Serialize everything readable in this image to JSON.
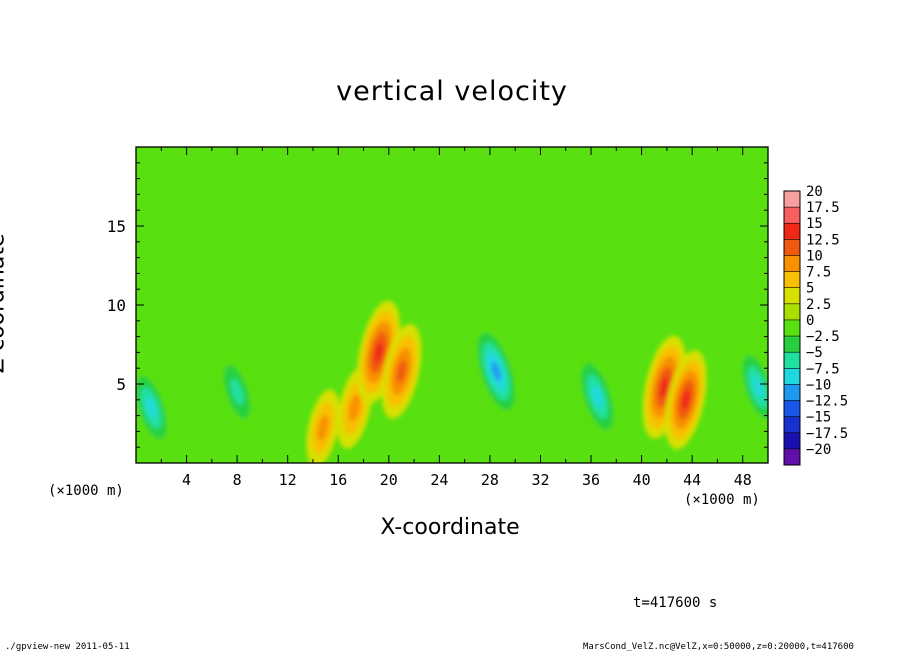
{
  "chart_data": {
    "type": "heatmap",
    "title": "vertical velocity",
    "xlabel": "X-coordinate",
    "ylabel": "Z-coordinate",
    "x_unit": "(×1000 m)",
    "xlim": [
      0,
      50
    ],
    "ylim": [
      0,
      20
    ],
    "x_ticks": [
      4,
      8,
      12,
      16,
      20,
      24,
      28,
      32,
      36,
      40,
      44,
      48
    ],
    "y_ticks": [
      5,
      10,
      15
    ],
    "colorbar": {
      "levels": [
        "20",
        "17.5",
        "15",
        "12.5",
        "10",
        "7.5",
        "5",
        "2.5",
        "0",
        "−2.5",
        "−5",
        "−7.5",
        "−10",
        "−12.5",
        "−15",
        "−17.5",
        "−20"
      ],
      "colors": [
        "#f8a0a0",
        "#f86060",
        "#f02818",
        "#f05a10",
        "#f89000",
        "#f8c000",
        "#d8e000",
        "#a8e000",
        "#58e010",
        "#28d040",
        "#20e0a0",
        "#20d8e0",
        "#2098f0",
        "#1858e8",
        "#1830d0",
        "#1810b0",
        "#6010a8"
      ]
    },
    "features": [
      {
        "x": 1.2,
        "z": 3.5,
        "w": -9
      },
      {
        "x": 8.0,
        "z": 4.5,
        "w": -8
      },
      {
        "x": 14.8,
        "z": 2.2,
        "w": 7
      },
      {
        "x": 17.3,
        "z": 3.5,
        "w": 8
      },
      {
        "x": 19.2,
        "z": 7.0,
        "w": 13
      },
      {
        "x": 21.0,
        "z": 5.8,
        "w": 11
      },
      {
        "x": 28.5,
        "z": 5.8,
        "w": -12
      },
      {
        "x": 36.5,
        "z": 4.2,
        "w": -10
      },
      {
        "x": 41.8,
        "z": 4.8,
        "w": 13
      },
      {
        "x": 43.5,
        "z": 4.0,
        "w": 12
      },
      {
        "x": 49.2,
        "z": 4.8,
        "w": -9
      }
    ]
  },
  "annotations": {
    "time": "t=417600 s",
    "footer_left": "./gpview-new  2011-05-11",
    "footer_right": "MarsCond_VelZ.nc@VelZ,x=0:50000,z=0:20000,t=417600"
  }
}
